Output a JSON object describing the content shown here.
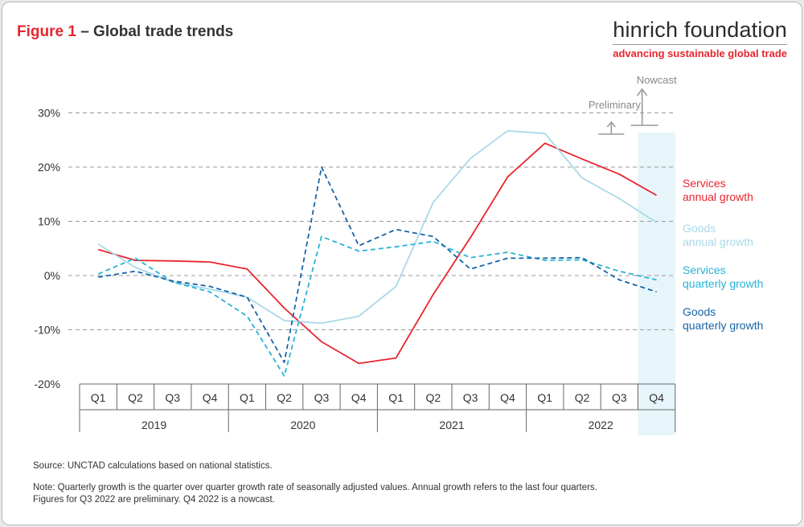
{
  "figure": {
    "number_label": "Figure 1",
    "separator": "–",
    "title": "Global trade trends"
  },
  "logo": {
    "name": "hinrich foundation",
    "tagline": "advancing sustainable global trade"
  },
  "annotations": {
    "preliminary": "Preliminary",
    "nowcast": "Nowcast"
  },
  "notes": {
    "source": "Source: UNCTAD calculations based on national statistics.",
    "note_line1": "Note: Quarterly growth is the quarter over quarter growth rate of seasonally adjusted values. Annual growth refers to the last four quarters.",
    "note_line2": "Figures for Q3 2022 are preliminary. Q4 2022 is a nowcast."
  },
  "colors": {
    "services_annual": "#e8252e",
    "goods_annual": "#a9d9e8",
    "services_quarterly": "#29b2d6",
    "goods_quarterly": "#1763a6",
    "nowcast_band": "#e6f5f9",
    "gridline": "#999999",
    "annotation": "#999999"
  },
  "chart_data": {
    "type": "line",
    "x_quarters": [
      "Q1",
      "Q2",
      "Q3",
      "Q4",
      "Q1",
      "Q2",
      "Q3",
      "Q4",
      "Q1",
      "Q2",
      "Q3",
      "Q4",
      "Q1",
      "Q2",
      "Q3",
      "Q4"
    ],
    "x_years": [
      "2019",
      "2020",
      "2021",
      "2022"
    ],
    "y_ticks": [
      "30%",
      "20%",
      "10%",
      "0%",
      "-10%",
      "-20%"
    ],
    "y_tick_values": [
      30,
      20,
      10,
      0,
      -10,
      -20
    ],
    "ylim": [
      -20,
      30
    ],
    "grid": "horizontal dashed",
    "highlighted_category": "Q4 2022",
    "series": [
      {
        "name": "Services annual growth",
        "label_lines": [
          "Services",
          "annual growth"
        ],
        "style": "solid",
        "color": "#e8252e",
        "values": [
          4.8,
          2.8,
          2.7,
          2.5,
          1.2,
          -6.0,
          -12.2,
          -16.2,
          -15.2,
          -3.5,
          7.0,
          18.2,
          24.4,
          21.5,
          18.7,
          14.8
        ]
      },
      {
        "name": "Goods annual growth",
        "label_lines": [
          "Goods",
          "annual growth"
        ],
        "style": "solid",
        "color": "#a9d9e8",
        "values": [
          5.8,
          1.5,
          -1.2,
          -2.5,
          -4.0,
          -8.3,
          -8.8,
          -7.5,
          -2.0,
          13.5,
          21.6,
          26.7,
          26.2,
          18.0,
          14.2,
          9.8
        ]
      },
      {
        "name": "Services quarterly growth",
        "label_lines": [
          "Services",
          "quarterly growth"
        ],
        "style": "dashed",
        "color": "#29b2d6",
        "values": [
          0.3,
          3.2,
          -1.2,
          -3.0,
          -7.5,
          -18.5,
          7.2,
          4.5,
          5.3,
          6.3,
          3.3,
          4.3,
          2.8,
          2.9,
          0.8,
          -0.8
        ]
      },
      {
        "name": "Goods quarterly growth",
        "label_lines": [
          "Goods",
          "quarterly growth"
        ],
        "style": "dashed",
        "color": "#1763a6",
        "values": [
          -0.3,
          0.8,
          -1.0,
          -2.0,
          -4.0,
          -16.0,
          20.0,
          5.5,
          8.5,
          7.2,
          1.2,
          3.2,
          3.2,
          3.3,
          -0.8,
          -3.0
        ]
      }
    ]
  }
}
